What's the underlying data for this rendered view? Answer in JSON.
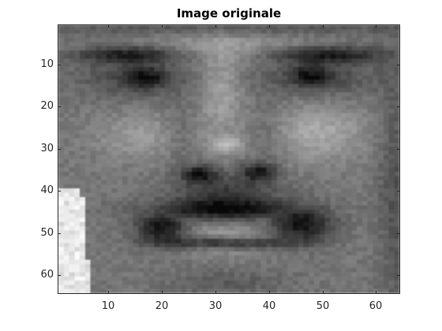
{
  "figure": {
    "title": "Image originale"
  },
  "image": {
    "colormap": "gray",
    "grid_size": 64,
    "description_kind": "grayscale close-up of a face (eyebrows, eyes, nose, mustache, lips)"
  },
  "axes": {
    "x_ticks": [
      "10",
      "20",
      "30",
      "40",
      "50",
      "60"
    ],
    "y_ticks": [
      "10",
      "20",
      "30",
      "40",
      "50",
      "60"
    ],
    "xlim": [
      0.5,
      64.5
    ],
    "ylim": [
      0.5,
      64.5
    ],
    "y_direction": "reverse",
    "axis_color": "#262626"
  }
}
